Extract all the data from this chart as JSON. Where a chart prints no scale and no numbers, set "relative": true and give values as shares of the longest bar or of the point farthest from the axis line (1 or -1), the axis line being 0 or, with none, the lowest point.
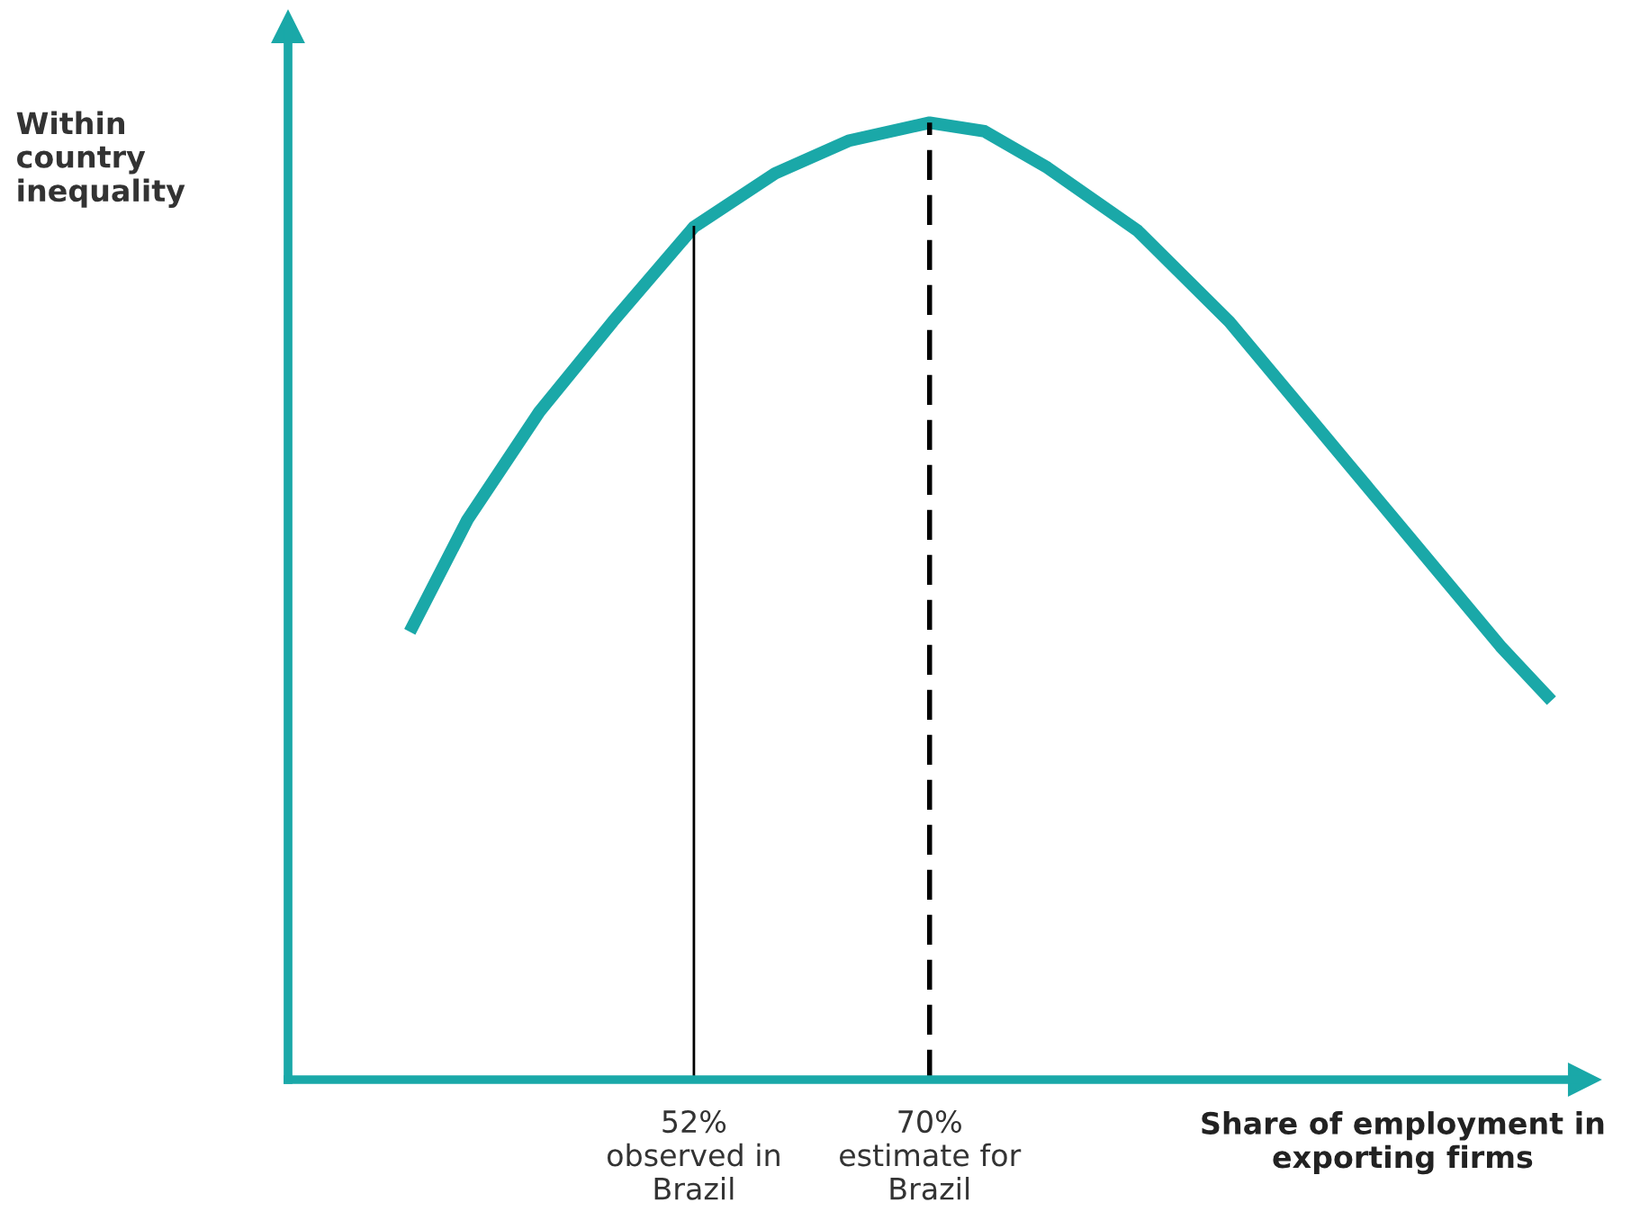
{
  "chart_data": {
    "type": "line",
    "relative": true,
    "xlabel": "Share of employment in\nexporting firms",
    "ylabel": "Within\ncountry\ninequality",
    "x": [
      30.3,
      34.7,
      40.2,
      45.8,
      52,
      58.2,
      63.8,
      70,
      74.2,
      79.0,
      85.9,
      92.9,
      99.8,
      106.7,
      113.6,
      117.5
    ],
    "series": [
      {
        "color": "#1aa8a8",
        "values": [
          0.468,
          0.585,
          0.698,
          0.792,
          0.891,
          0.947,
          0.981,
          1,
          0.991,
          0.953,
          0.887,
          0.792,
          0.679,
          0.566,
          0.453,
          0.396
        ]
      }
    ],
    "xlim": [
      21,
      120
    ],
    "xticks": [
      {
        "value": 52,
        "label": "52%\nobserved in\nBrazil"
      },
      {
        "value": 70,
        "label": "70%\nestimate for\nBrazil"
      }
    ],
    "ref_lines": [
      {
        "axis": "x",
        "value": 52,
        "color": "#000000",
        "line_style": "solid"
      },
      {
        "axis": "x",
        "value": 70,
        "color": "#000000",
        "line_style": "dashed"
      }
    ],
    "grid": false,
    "legend": false,
    "tick_labels": "x",
    "marker": "none",
    "line_style": "solid"
  }
}
